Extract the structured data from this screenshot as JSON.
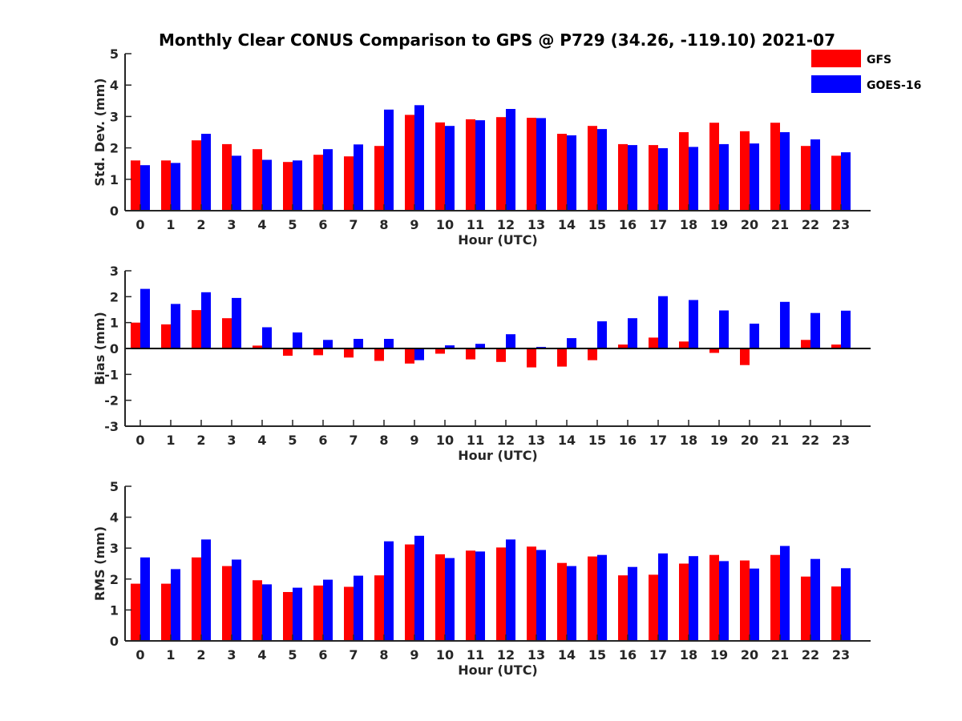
{
  "figure_title": "Monthly Clear CONUS Comparison to GPS @ P729 (34.26, -119.10) 2021-07",
  "colors": {
    "GFS": "#ff0000",
    "GOES-16": "#0000ff"
  },
  "legend": [
    {
      "name": "GFS",
      "color": "#ff0000"
    },
    {
      "name": "GOES-16",
      "color": "#0000ff"
    }
  ],
  "chart_data": [
    {
      "type": "bar",
      "title": "Monthly Clear CONUS Comparison to GPS @ P729 (34.26, -119.10) 2021-07",
      "xlabel": "Hour (UTC)",
      "ylabel": "Std. Dev. (mm)",
      "ylim": [
        0,
        5
      ],
      "yticks": [
        0,
        1,
        2,
        3,
        4,
        5
      ],
      "categories": [
        "0",
        "1",
        "2",
        "3",
        "4",
        "5",
        "6",
        "7",
        "8",
        "9",
        "10",
        "11",
        "12",
        "13",
        "14",
        "15",
        "16",
        "17",
        "18",
        "19",
        "20",
        "21",
        "22",
        "23"
      ],
      "series": [
        {
          "name": "GFS",
          "values": [
            1.6,
            1.6,
            2.24,
            2.12,
            1.96,
            1.55,
            1.78,
            1.73,
            2.06,
            3.05,
            2.81,
            2.91,
            2.98,
            2.96,
            2.45,
            2.7,
            2.12,
            2.09,
            2.5,
            2.8,
            2.53,
            2.8,
            2.06,
            1.75
          ]
        },
        {
          "name": "GOES-16",
          "values": [
            1.45,
            1.52,
            2.45,
            1.75,
            1.62,
            1.6,
            1.96,
            2.11,
            3.22,
            3.36,
            2.7,
            2.88,
            3.24,
            2.95,
            2.4,
            2.6,
            2.09,
            1.99,
            2.03,
            2.12,
            2.14,
            2.5,
            2.27,
            1.86
          ]
        }
      ]
    },
    {
      "type": "bar",
      "xlabel": "Hour (UTC)",
      "ylabel": "Bias (mm)",
      "ylim": [
        -3,
        3
      ],
      "yticks": [
        -3,
        -2,
        -1,
        0,
        1,
        2,
        3
      ],
      "categories": [
        "0",
        "1",
        "2",
        "3",
        "4",
        "5",
        "6",
        "7",
        "8",
        "9",
        "10",
        "11",
        "12",
        "13",
        "14",
        "15",
        "16",
        "17",
        "18",
        "19",
        "20",
        "21",
        "22",
        "23"
      ],
      "series": [
        {
          "name": "GFS",
          "values": [
            1.0,
            0.93,
            1.48,
            1.17,
            0.11,
            -0.28,
            -0.26,
            -0.35,
            -0.48,
            -0.58,
            -0.2,
            -0.42,
            -0.52,
            -0.73,
            -0.7,
            -0.45,
            0.15,
            0.42,
            0.27,
            -0.17,
            -0.64,
            0.01,
            0.33,
            0.15
          ]
        },
        {
          "name": "GOES-16",
          "values": [
            2.3,
            1.72,
            2.17,
            1.95,
            0.82,
            0.62,
            0.33,
            0.37,
            0.37,
            -0.45,
            0.12,
            0.18,
            0.55,
            0.06,
            0.4,
            1.05,
            1.17,
            2.02,
            1.87,
            1.47,
            0.96,
            1.8,
            1.37,
            1.46
          ]
        }
      ]
    },
    {
      "type": "bar",
      "xlabel": "Hour (UTC)",
      "ylabel": "RMS (mm)",
      "ylim": [
        0,
        5
      ],
      "yticks": [
        0,
        1,
        2,
        3,
        4,
        5
      ],
      "categories": [
        "0",
        "1",
        "2",
        "3",
        "4",
        "5",
        "6",
        "7",
        "8",
        "9",
        "10",
        "11",
        "12",
        "13",
        "14",
        "15",
        "16",
        "17",
        "18",
        "19",
        "20",
        "21",
        "22",
        "23"
      ],
      "series": [
        {
          "name": "GFS",
          "values": [
            1.85,
            1.85,
            2.7,
            2.42,
            1.96,
            1.58,
            1.79,
            1.75,
            2.12,
            3.12,
            2.8,
            2.92,
            3.02,
            3.05,
            2.52,
            2.73,
            2.12,
            2.14,
            2.5,
            2.78,
            2.6,
            2.78,
            2.08,
            1.76
          ]
        },
        {
          "name": "GOES-16",
          "values": [
            2.7,
            2.32,
            3.28,
            2.63,
            1.83,
            1.72,
            1.98,
            2.11,
            3.22,
            3.4,
            2.68,
            2.89,
            3.28,
            2.94,
            2.42,
            2.78,
            2.39,
            2.83,
            2.74,
            2.58,
            2.34,
            3.07,
            2.65,
            2.35
          ]
        }
      ]
    }
  ]
}
